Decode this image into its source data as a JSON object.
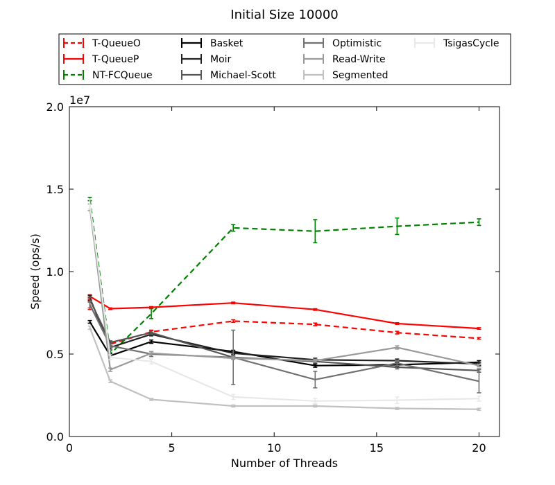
{
  "chart_data": {
    "type": "line",
    "title": "Initial Size 10000",
    "xlabel": "Number of Threads",
    "ylabel": "Speed (ops/s)",
    "y_multiplier_label": "1e7",
    "xlim": [
      0,
      21
    ],
    "ylim": [
      0,
      20000000
    ],
    "xticks": [
      0,
      5,
      10,
      15,
      20
    ],
    "yticks": [
      0,
      5000000,
      10000000,
      15000000,
      20000000
    ],
    "ytick_labels": [
      "0.0",
      "0.5",
      "1.0",
      "1.5",
      "2.0"
    ],
    "grid": false,
    "legend_position": "top, above plot",
    "x": [
      1,
      2,
      4,
      8,
      12,
      16,
      20
    ],
    "series": [
      {
        "name": "T-QueueO",
        "color": "#ff0000",
        "dashed": true,
        "values": [
          8000000,
          5600000,
          6350000,
          7000000,
          6800000,
          6300000,
          5950000
        ],
        "errors": [
          300000,
          100000,
          100000,
          80000,
          80000,
          80000,
          50000
        ]
      },
      {
        "name": "T-QueueP",
        "color": "#ff0000",
        "dashed": false,
        "values": [
          8500000,
          7750000,
          7830000,
          8100000,
          7700000,
          6850000,
          6550000
        ],
        "errors": [
          100000,
          50000,
          50000,
          50000,
          50000,
          50000,
          50000
        ]
      },
      {
        "name": "NT-FCQueue",
        "color": "#008000",
        "dashed": true,
        "values": [
          14400000,
          5000000,
          7450000,
          12650000,
          12450000,
          12750000,
          13000000
        ],
        "errors": [
          100000,
          200000,
          300000,
          200000,
          700000,
          500000,
          200000
        ]
      },
      {
        "name": "Basket",
        "color": "#000000",
        "dashed": false,
        "values": [
          6950000,
          4900000,
          5750000,
          5150000,
          4300000,
          4350000,
          4500000
        ],
        "errors": [
          80000,
          100000,
          100000,
          80000,
          100000,
          100000,
          100000
        ]
      },
      {
        "name": "Moir",
        "color": "#222222",
        "dashed": false,
        "values": [
          8400000,
          5400000,
          6200000,
          5050000,
          4650000,
          4600000,
          4400000
        ],
        "errors": [
          150000,
          100000,
          100000,
          80000,
          100000,
          100000,
          100000
        ]
      },
      {
        "name": "Michael-Scott",
        "color": "#555555",
        "dashed": false,
        "values": [
          8300000,
          5700000,
          6300000,
          4800000,
          4550000,
          4200000,
          4000000
        ],
        "errors": [
          150000,
          100000,
          100000,
          80000,
          100000,
          100000,
          100000
        ]
      },
      {
        "name": "Optimistic",
        "color": "#707070",
        "dashed": false,
        "values": [
          8000000,
          5500000,
          5000000,
          4800000,
          3450000,
          4450000,
          3350000
        ],
        "errors": [
          200000,
          100000,
          150000,
          1650000,
          500000,
          150000,
          700000
        ]
      },
      {
        "name": "Read-Write",
        "color": "#9a9a9a",
        "dashed": false,
        "values": [
          13900000,
          4050000,
          5050000,
          4750000,
          4600000,
          5400000,
          4300000
        ],
        "errors": [
          200000,
          100000,
          100000,
          80000,
          80000,
          100000,
          80000
        ]
      },
      {
        "name": "Segmented",
        "color": "#c0c0c0",
        "dashed": false,
        "values": [
          6600000,
          3350000,
          2250000,
          1850000,
          1850000,
          1700000,
          1650000
        ],
        "errors": [
          100000,
          80000,
          60000,
          60000,
          60000,
          60000,
          60000
        ]
      },
      {
        "name": "TsigasCycle",
        "color": "#e8e8e8",
        "dashed": false,
        "values": [
          14100000,
          4800000,
          4550000,
          2400000,
          2150000,
          2200000,
          2300000
        ],
        "errors": [
          300000,
          150000,
          150000,
          150000,
          150000,
          200000,
          150000
        ]
      }
    ]
  }
}
